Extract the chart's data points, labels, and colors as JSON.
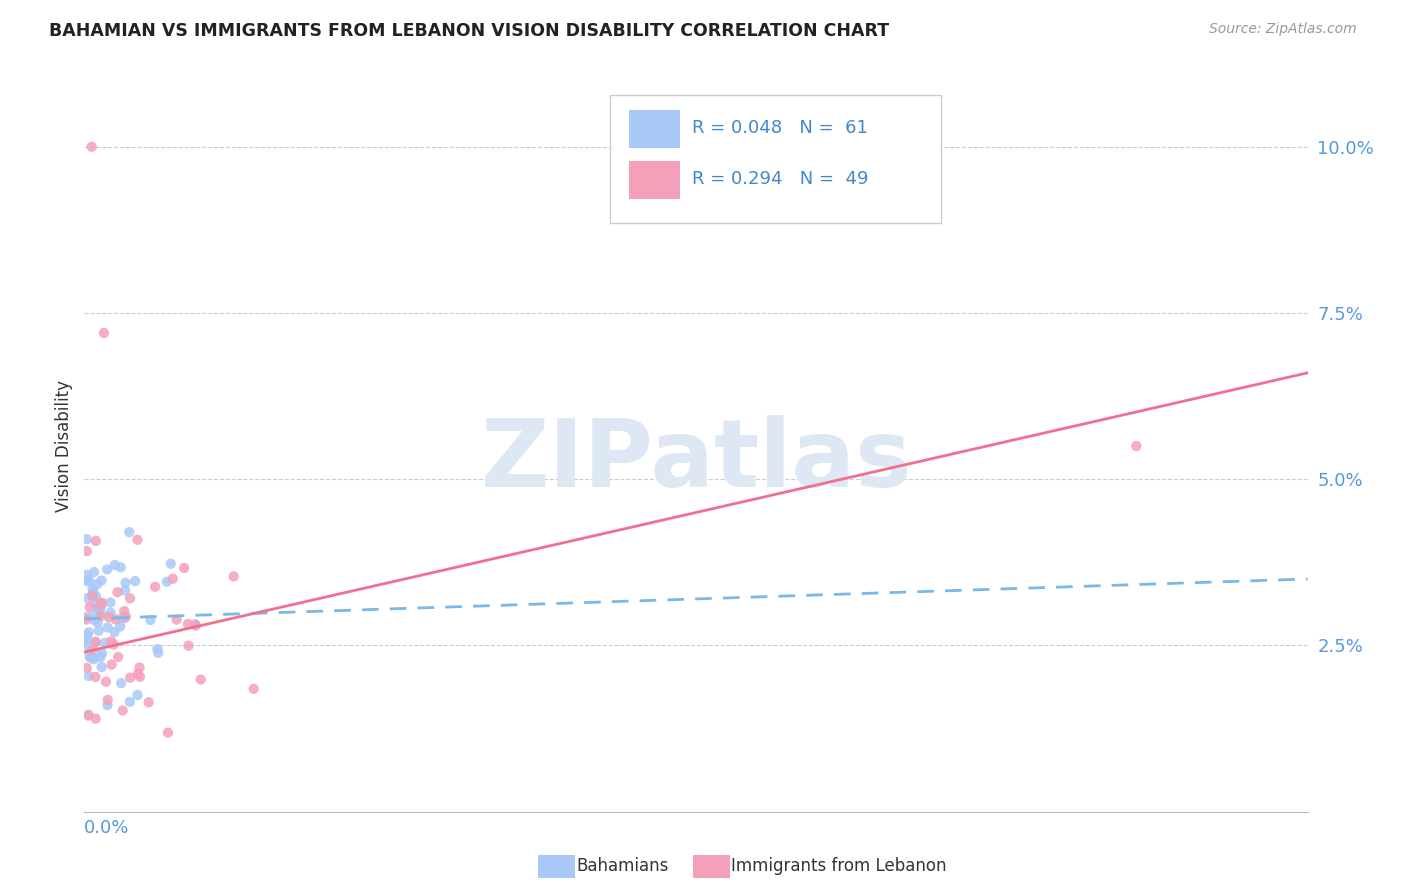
{
  "title": "BAHAMIAN VS IMMIGRANTS FROM LEBANON VISION DISABILITY CORRELATION CHART",
  "source": "Source: ZipAtlas.com",
  "ylabel": "Vision Disability",
  "yticks": [
    "2.5%",
    "5.0%",
    "7.5%",
    "10.0%"
  ],
  "ytick_vals": [
    0.025,
    0.05,
    0.075,
    0.1
  ],
  "xlim": [
    0.0,
    0.5
  ],
  "ylim": [
    0.0,
    0.11
  ],
  "bahamian_color": "#a8c8f8",
  "lebanon_color": "#f4a0b8",
  "bahamian_line_color": "#7ab8e8",
  "lebanon_line_color": "#f07090",
  "bahamian_line_start": 0.029,
  "bahamian_line_end": 0.035,
  "lebanon_line_start": 0.024,
  "lebanon_line_end": 0.066,
  "bah_seed": 77,
  "leb_seed": 88
}
